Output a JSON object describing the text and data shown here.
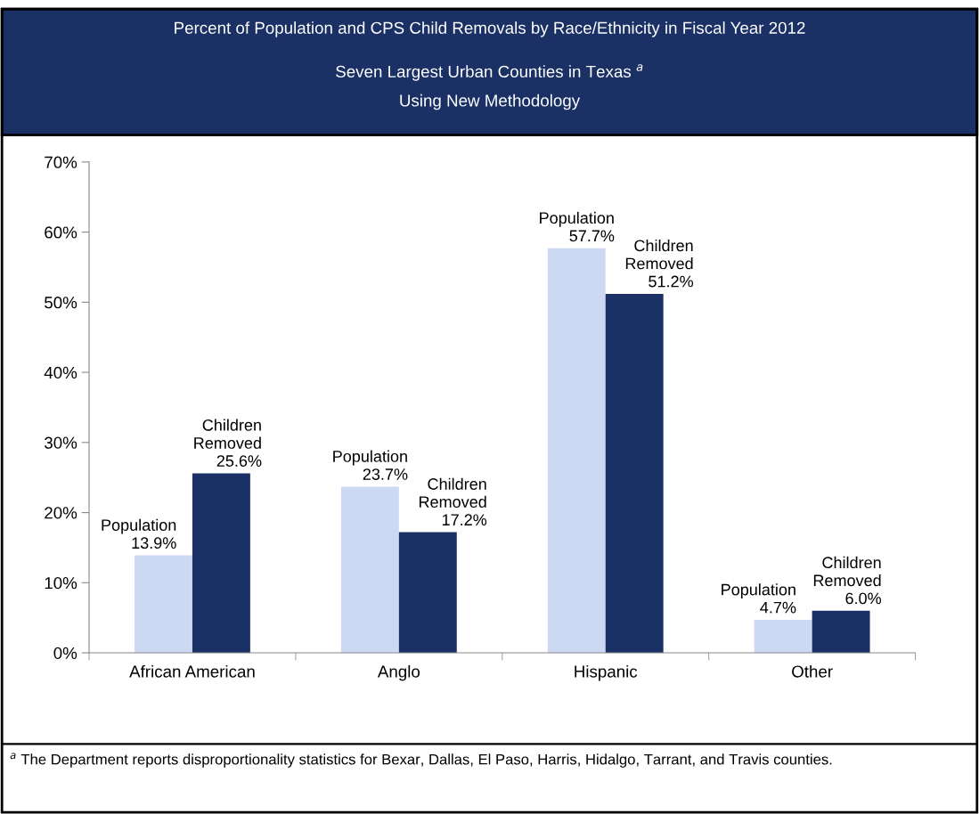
{
  "chart_data": {
    "type": "bar",
    "title": "Percent of Population and CPS Child Removals by Race/Ethnicity in Fiscal Year 2012",
    "subtitle": "Seven Largest Urban Counties in Texas $^{a}$\nUsing New Methodology",
    "categories": [
      "African American",
      "Anglo",
      "Hispanic",
      "Other"
    ],
    "series": [
      {
        "name": "Population",
        "color": "#cdd9f3",
        "values": [
          13.9,
          23.7,
          57.7,
          4.7
        ],
        "value_labels": [
          "13.9%",
          "23.7%",
          "57.7%",
          "4.7%"
        ]
      },
      {
        "name": "Children\nRemoved",
        "color": "#1b3166",
        "values": [
          25.6,
          17.2,
          51.2,
          6.0
        ],
        "value_labels": [
          "25.6%",
          "17.2%",
          "51.2%",
          "6.0%"
        ]
      }
    ],
    "ylim": [
      0,
      70
    ],
    "yticks": [
      {
        "value": 0,
        "label": "0%"
      },
      {
        "value": 10,
        "label": "10%"
      },
      {
        "value": 20,
        "label": "20%"
      },
      {
        "value": 30,
        "label": "30%"
      },
      {
        "value": 40,
        "label": "40%"
      },
      {
        "value": 50,
        "label": "50%"
      },
      {
        "value": 60,
        "label": "60%"
      },
      {
        "value": 70,
        "label": "70%"
      }
    ],
    "grid": false,
    "legend": false,
    "annotations": [
      "$^{a}$ The Department reports disproportionality statistics for Bexar, Dallas, El Paso, Harris, Hidalgo, Tarrant, and Travis counties."
    ]
  }
}
